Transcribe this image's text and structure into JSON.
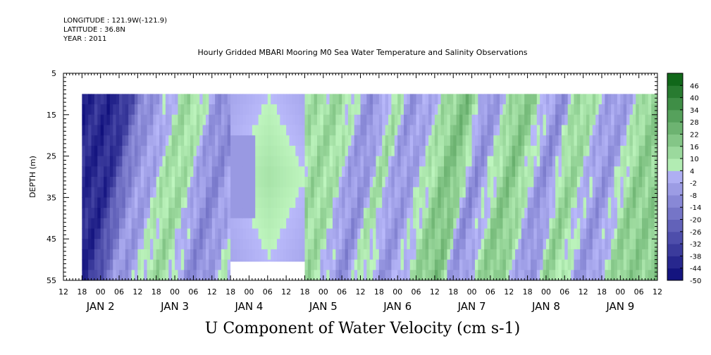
{
  "header": {
    "longitude": "LONGITUDE : 121.9W(-121.9)",
    "latitude": "LATITUDE : 36.8N",
    "year": "YEAR : 2011"
  },
  "chart_data": {
    "type": "heatmap",
    "title": "Hourly Gridded MBARI Mooring M0 Sea Water Temperature and Salinity Observations",
    "xlabel": "U Component of Water Velocity (cm s-1)",
    "ylabel": "DEPTH (m)",
    "ylim": [
      5,
      55
    ],
    "y_inverted": true,
    "yticks": [
      5,
      15,
      25,
      35,
      45,
      55
    ],
    "x_start_hour": "JAN 1 12",
    "xtick_labels": [
      "12",
      "18",
      "00",
      "06",
      "12",
      "18",
      "00",
      "06",
      "12",
      "18",
      "00",
      "06",
      "12",
      "18",
      "00",
      "06",
      "12",
      "18",
      "00",
      "06",
      "12",
      "18",
      "00",
      "06",
      "12",
      "18",
      "00",
      "06",
      "12",
      "18",
      "00",
      "06",
      "12"
    ],
    "day_labels": [
      "JAN 2",
      "JAN 3",
      "JAN 4",
      "JAN 5",
      "JAN 6",
      "JAN 7",
      "JAN 8",
      "JAN 9"
    ],
    "data_depth_range": [
      10,
      55
    ],
    "data_time_start": "JAN 1 18",
    "colorbar": {
      "levels": [
        -50,
        -44,
        -38,
        -32,
        -26,
        -20,
        -14,
        -8,
        -2,
        4,
        10,
        16,
        22,
        28,
        34,
        40,
        46
      ],
      "labels": [
        "46",
        "40",
        "34",
        "28",
        "22",
        "16",
        "10",
        "4",
        "-2",
        "-8",
        "-14",
        "-20",
        "-26",
        "-32",
        "-38",
        "-44",
        "-50"
      ]
    },
    "velocity_band_centers": [
      {
        "time": "JAN 2 00",
        "value": -40
      },
      {
        "time": "JAN 2 12",
        "value": -6
      },
      {
        "time": "JAN 3 00",
        "value": 12
      },
      {
        "time": "JAN 3 12",
        "value": -10
      },
      {
        "time": "JAN 4 00",
        "value": 6
      },
      {
        "time": "JAN 5 00",
        "value": 12
      },
      {
        "time": "JAN 5 12",
        "value": -8
      },
      {
        "time": "JAN 5 18",
        "value": 10
      },
      {
        "time": "JAN 6 00",
        "value": -6
      },
      {
        "time": "JAN 6 18",
        "value": 20
      },
      {
        "time": "JAN 7 00",
        "value": -8
      },
      {
        "time": "JAN 7 12",
        "value": 18
      },
      {
        "time": "JAN 8 00",
        "value": -8
      },
      {
        "time": "JAN 8 06",
        "value": 14
      },
      {
        "time": "JAN 8 18",
        "value": -6
      },
      {
        "time": "JAN 9 06",
        "value": 16
      }
    ]
  }
}
